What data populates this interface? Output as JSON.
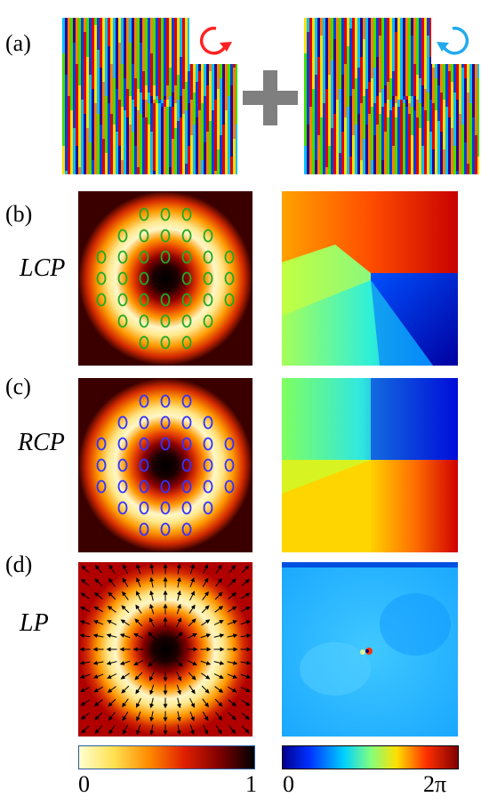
{
  "labels": {
    "a": "(a)",
    "b": "(b)",
    "c": "(c)",
    "d": "(d)",
    "lcp": "LCP",
    "rcp": "RCP",
    "lp": "LP"
  },
  "colorbars": {
    "intensity": {
      "min": "0",
      "max": "1"
    },
    "phase": {
      "min": "0",
      "max": "2π"
    }
  },
  "colors": {
    "lcp_ellipse": "#22aa22",
    "rcp_ellipse": "#3333ff",
    "arrow_clockwise": "#ff2222",
    "arrow_counterclockwise": "#22aaee",
    "plus": "#7f7f7f"
  },
  "icons": {
    "clockwise": "clockwise-arrow-icon",
    "counterclockwise": "counterclockwise-arrow-icon"
  }
}
